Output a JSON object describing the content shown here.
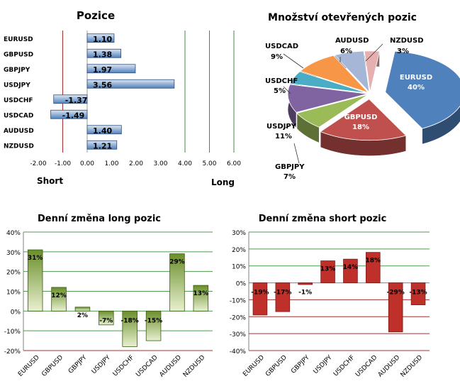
{
  "chart_data": [
    {
      "id": "positions",
      "type": "bar",
      "orientation": "horizontal",
      "title": "Pozice",
      "categories": [
        "EURUSD",
        "GBPUSD",
        "GBPJPY",
        "USDJPY",
        "USDCHF",
        "USDCAD",
        "AUDUSD",
        "NZDUSD"
      ],
      "values": [
        1.1,
        1.38,
        1.97,
        3.56,
        -1.37,
        -1.49,
        1.4,
        1.21
      ],
      "value_labels": [
        "1.10",
        "1.38",
        "1.97",
        "3.56",
        "-1.37",
        "-1.49",
        "1.40",
        "1.21"
      ],
      "xlim": [
        -2,
        6
      ],
      "ticks": [
        "-2.00",
        "-1.00",
        "0.00",
        "1.00",
        "2.00",
        "3.00",
        "4.00",
        "5.00",
        "6.00"
      ],
      "side_labels": {
        "short": "Short",
        "long": "Long"
      },
      "colors": {
        "bar": "#4f81bd",
        "bar_light": "#dce6f2",
        "short_line": "#a03030",
        "long_line": "#3c8c3c"
      }
    },
    {
      "id": "open-positions",
      "type": "pie",
      "title": "Množství otevřených pozic",
      "slices": [
        {
          "label": "EURUSD",
          "value": 40,
          "text": "40%",
          "color": "#4f81bd"
        },
        {
          "label": "GBPUSD",
          "value": 18,
          "text": "18%",
          "color": "#c0504d"
        },
        {
          "label": "GBPJPY",
          "value": 7,
          "text": "7%",
          "color": "#9bbb59"
        },
        {
          "label": "USDJPY",
          "value": 11,
          "text": "11%",
          "color": "#8064a2"
        },
        {
          "label": "USDCHF",
          "value": 5,
          "text": "5%",
          "color": "#4bacc6"
        },
        {
          "label": "USDCAD",
          "value": 9,
          "text": "9%",
          "color": "#f79646"
        },
        {
          "label": "AUDUSD",
          "value": 6,
          "text": "6%",
          "color": "#a5b6d6"
        },
        {
          "label": "NZDUSD",
          "value": 3,
          "text": "3%",
          "color": "#e6b0b0"
        }
      ]
    },
    {
      "id": "long-change",
      "type": "bar",
      "title": "Denní změna long pozic",
      "categories": [
        "EURUSD",
        "GBPUSD",
        "GBPJPY",
        "USDJPY",
        "USDCHF",
        "USDCAD",
        "AUDUSD",
        "NZDUSD"
      ],
      "values": [
        31,
        12,
        2,
        -7,
        -18,
        -15,
        29,
        13
      ],
      "value_labels": [
        "31%",
        "12%",
        "2%",
        "-7%",
        "-18%",
        "-15%",
        "29%",
        "13%"
      ],
      "ylim": [
        -20,
        40
      ],
      "ticks": [
        "-20%",
        "-10%",
        "0%",
        "10%",
        "20%",
        "30%",
        "40%"
      ],
      "colors": {
        "bar": "#6a8f2a",
        "bar_light": "#e8f0d0",
        "grid": "#4f9a4f",
        "axis": "#a03030"
      }
    },
    {
      "id": "short-change",
      "type": "bar",
      "title": "Denní změna short pozic",
      "categories": [
        "EURUSD",
        "GBPUSD",
        "GBPJPY",
        "USDJPY",
        "USDCHF",
        "USDCAD",
        "AUDUSD",
        "NZDUSD"
      ],
      "values": [
        -19,
        -17,
        -1,
        13,
        14,
        18,
        -29,
        -13
      ],
      "value_labels": [
        "-19%",
        "-17%",
        "-1%",
        "13%",
        "14%",
        "18%",
        "-29%",
        "-13%"
      ],
      "ylim": [
        -40,
        30
      ],
      "ticks": [
        "-40%",
        "-30%",
        "-20%",
        "-10%",
        "0%",
        "10%",
        "20%",
        "30%"
      ],
      "colors": {
        "bar": "#c0302b",
        "grid_pos": "#4f9a4f",
        "grid_neg": "#a03030"
      }
    }
  ]
}
